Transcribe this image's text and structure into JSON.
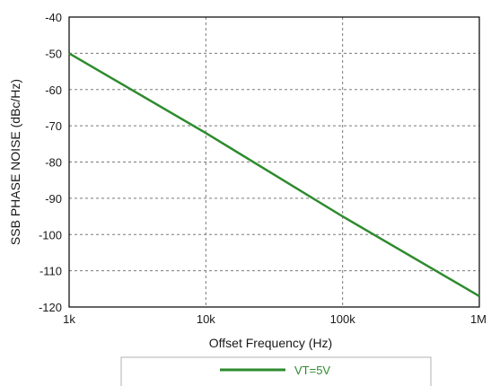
{
  "chart_data": {
    "type": "line",
    "title": "",
    "xlabel": "Offset Frequency (Hz)",
    "ylabel": "SSB PHASE NOISE (dBc/Hz)",
    "x_scale": "log",
    "xlim": [
      1000,
      1000000
    ],
    "ylim": [
      -120,
      -40
    ],
    "x_ticks": [
      1000,
      10000,
      100000,
      1000000
    ],
    "x_tick_labels": [
      "1k",
      "10k",
      "100k",
      "1M"
    ],
    "y_ticks": [
      -40,
      -50,
      -60,
      -70,
      -80,
      -90,
      -100,
      -110,
      -120
    ],
    "y_tick_labels": [
      "-40",
      "-50",
      "-60",
      "-70",
      "-80",
      "-90",
      "-100",
      "-110",
      "-120"
    ],
    "grid": true,
    "legend_position": "bottom-center",
    "series": [
      {
        "name": "VT=5V",
        "color": "#2e8b2e",
        "x": [
          1000,
          10000,
          100000,
          1000000
        ],
        "y": [
          -50,
          -72,
          -95,
          -117
        ]
      }
    ]
  }
}
